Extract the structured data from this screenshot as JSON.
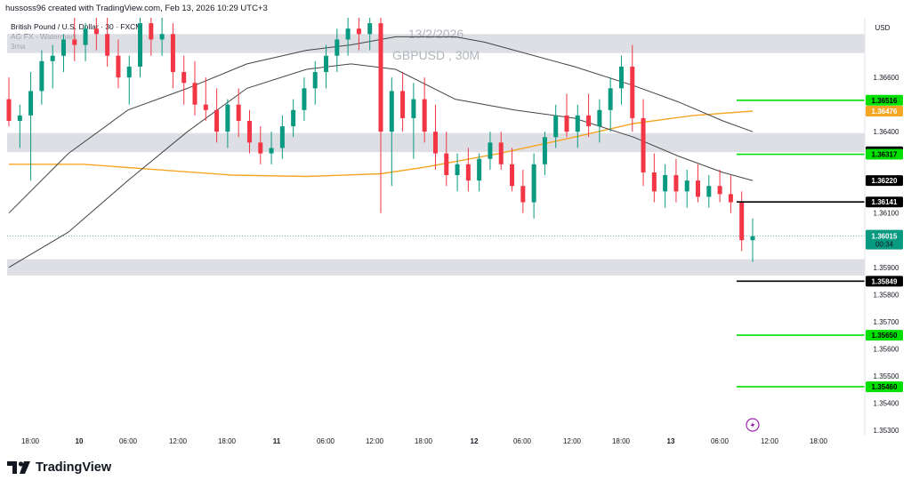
{
  "header": {
    "created_by": "hussoss96 created with TradingView.com, Feb 13, 2026 10:29 UTC+3"
  },
  "legend": {
    "symbol": "British Pound / U.S. Dollar · 30 · FXCM",
    "line2": "AG FX - Watermark",
    "line3": "3ma"
  },
  "watermark": {
    "date": "13/2/2026",
    "symbol": "GBPUSD , 30M"
  },
  "currency": "USD",
  "countdown": "00:34",
  "brand": {
    "name": "TradingView"
  },
  "colors": {
    "up": "#089981",
    "down": "#f23645",
    "ma_orange": "#f5a623",
    "ma_black": "#444444",
    "target_green": "#00e000",
    "level_black": "#000000",
    "zone_gray": "#d1d4dc"
  },
  "chart_data": {
    "type": "candlestick",
    "title": "",
    "y_ticks": [
      "1.36600",
      "1.36400",
      "1.36100",
      "1.35900",
      "1.35800",
      "1.35700",
      "1.35600",
      "1.35500",
      "1.35400",
      "1.35300"
    ],
    "x_ticks": [
      "18:00",
      "10",
      "06:00",
      "12:00",
      "18:00",
      "11",
      "06:00",
      "12:00",
      "18:00",
      "12",
      "06:00",
      "12:00",
      "18:00",
      "13",
      "06:00",
      "12:00",
      "18:00"
    ],
    "ylim": [
      1.3528,
      1.3682
    ],
    "last_price": 1.36015,
    "price_tags": [
      {
        "value": 1.36516,
        "label": "1.36516",
        "style": "green"
      },
      {
        "value": 1.36476,
        "label": "1.36476",
        "style": "orange"
      },
      {
        "value": 1.36326,
        "label": "1.36326",
        "style": "black"
      },
      {
        "value": 1.36317,
        "label": "1.36317",
        "style": "green"
      },
      {
        "value": 1.3622,
        "label": "1.36220",
        "style": "black"
      },
      {
        "value": 1.36141,
        "label": "1.36141",
        "style": "black"
      },
      {
        "value": 1.35849,
        "label": "1.35849",
        "style": "black"
      },
      {
        "value": 1.3565,
        "label": "1.35650",
        "style": "green"
      },
      {
        "value": 1.3546,
        "label": "1.35460",
        "style": "green"
      }
    ],
    "zones": [
      [
        1.3669,
        1.3676
      ],
      [
        1.36325,
        1.36395
      ],
      [
        1.3587,
        1.3593
      ]
    ],
    "moving_averages": [
      {
        "name": "orange",
        "points": [
          [
            0,
            1.3628
          ],
          [
            20,
            1.3628
          ],
          [
            50,
            1.3628
          ],
          [
            100,
            1.3626
          ],
          [
            150,
            1.3624
          ],
          [
            200,
            1.36235
          ],
          [
            250,
            1.36245
          ],
          [
            280,
            1.3627
          ],
          [
            330,
            1.3632
          ],
          [
            380,
            1.3638
          ],
          [
            420,
            1.3643
          ],
          [
            460,
            1.3646
          ],
          [
            500,
            1.36476
          ]
        ]
      },
      {
        "name": "upper",
        "points": [
          [
            0,
            1.361
          ],
          [
            40,
            1.3632
          ],
          [
            80,
            1.3648
          ],
          [
            120,
            1.3656
          ],
          [
            160,
            1.3665
          ],
          [
            200,
            1.367
          ],
          [
            230,
            1.3672
          ],
          [
            260,
            1.3675
          ],
          [
            300,
            1.3675
          ],
          [
            320,
            1.3673
          ],
          [
            380,
            1.3664
          ],
          [
            420,
            1.3657
          ],
          [
            450,
            1.3651
          ],
          [
            480,
            1.3644
          ],
          [
            500,
            1.364
          ]
        ]
      },
      {
        "name": "lower",
        "points": [
          [
            0,
            1.359
          ],
          [
            40,
            1.3603
          ],
          [
            80,
            1.3622
          ],
          [
            120,
            1.364
          ],
          [
            160,
            1.3656
          ],
          [
            200,
            1.3663
          ],
          [
            230,
            1.3665
          ],
          [
            260,
            1.3663
          ],
          [
            300,
            1.3652
          ],
          [
            340,
            1.3648
          ],
          [
            380,
            1.3645
          ],
          [
            420,
            1.3638
          ],
          [
            450,
            1.3631
          ],
          [
            480,
            1.3625
          ],
          [
            500,
            1.3622
          ]
        ]
      }
    ],
    "candles": [
      [
        1.3652,
        1.366,
        1.3642,
        1.3644
      ],
      [
        1.3644,
        1.365,
        1.3634,
        1.3646
      ],
      [
        1.3646,
        1.3662,
        1.3622,
        1.3655
      ],
      [
        1.3655,
        1.367,
        1.365,
        1.3666
      ],
      [
        1.3666,
        1.3672,
        1.3656,
        1.3668
      ],
      [
        1.3668,
        1.3676,
        1.3662,
        1.3674
      ],
      [
        1.3674,
        1.3682,
        1.3666,
        1.3672
      ],
      [
        1.3672,
        1.368,
        1.3666,
        1.3678
      ],
      [
        1.3678,
        1.3682,
        1.367,
        1.3676
      ],
      [
        1.3676,
        1.3682,
        1.3664,
        1.3668
      ],
      [
        1.3668,
        1.3674,
        1.3656,
        1.366
      ],
      [
        1.366,
        1.3668,
        1.365,
        1.3664
      ],
      [
        1.3664,
        1.3682,
        1.366,
        1.368
      ],
      [
        1.368,
        1.3682,
        1.3668,
        1.3674
      ],
      [
        1.3674,
        1.3682,
        1.3668,
        1.3676
      ],
      [
        1.3676,
        1.368,
        1.3656,
        1.3662
      ],
      [
        1.3662,
        1.3668,
        1.365,
        1.3658
      ],
      [
        1.3658,
        1.3666,
        1.3646,
        1.365
      ],
      [
        1.365,
        1.366,
        1.3644,
        1.3648
      ],
      [
        1.3648,
        1.3656,
        1.3636,
        1.364
      ],
      [
        1.364,
        1.3652,
        1.3634,
        1.365
      ],
      [
        1.365,
        1.3656,
        1.3638,
        1.3644
      ],
      [
        1.3644,
        1.3648,
        1.3632,
        1.3636
      ],
      [
        1.3636,
        1.3642,
        1.3628,
        1.3632
      ],
      [
        1.3632,
        1.364,
        1.3628,
        1.3634
      ],
      [
        1.3634,
        1.3646,
        1.363,
        1.3642
      ],
      [
        1.3642,
        1.3652,
        1.3638,
        1.3648
      ],
      [
        1.3648,
        1.366,
        1.3644,
        1.3656
      ],
      [
        1.3656,
        1.3666,
        1.365,
        1.3662
      ],
      [
        1.3662,
        1.3672,
        1.3656,
        1.3668
      ],
      [
        1.3668,
        1.3678,
        1.3662,
        1.3674
      ],
      [
        1.3674,
        1.3682,
        1.3668,
        1.3678
      ],
      [
        1.3678,
        1.3682,
        1.367,
        1.3676
      ],
      [
        1.3676,
        1.3682,
        1.367,
        1.368
      ],
      [
        1.368,
        1.3682,
        1.361,
        1.364
      ],
      [
        1.364,
        1.366,
        1.362,
        1.3655
      ],
      [
        1.3655,
        1.3662,
        1.364,
        1.3645
      ],
      [
        1.3645,
        1.3658,
        1.363,
        1.3652
      ],
      [
        1.3652,
        1.366,
        1.3636,
        1.364
      ],
      [
        1.364,
        1.365,
        1.3626,
        1.3632
      ],
      [
        1.3632,
        1.364,
        1.362,
        1.3624
      ],
      [
        1.3624,
        1.3632,
        1.3618,
        1.3628
      ],
      [
        1.3628,
        1.3634,
        1.3618,
        1.3622
      ],
      [
        1.3622,
        1.3632,
        1.3618,
        1.363
      ],
      [
        1.363,
        1.364,
        1.3626,
        1.3636
      ],
      [
        1.3636,
        1.364,
        1.3626,
        1.3628
      ],
      [
        1.3628,
        1.3634,
        1.3618,
        1.362
      ],
      [
        1.362,
        1.3626,
        1.361,
        1.3614
      ],
      [
        1.3614,
        1.3632,
        1.3608,
        1.3628
      ],
      [
        1.3628,
        1.364,
        1.3624,
        1.3638
      ],
      [
        1.3638,
        1.365,
        1.3634,
        1.3646
      ],
      [
        1.3646,
        1.3654,
        1.3638,
        1.364
      ],
      [
        1.364,
        1.365,
        1.3634,
        1.3646
      ],
      [
        1.3646,
        1.3654,
        1.3638,
        1.3642
      ],
      [
        1.3642,
        1.3652,
        1.3636,
        1.3648
      ],
      [
        1.3648,
        1.366,
        1.364,
        1.3656
      ],
      [
        1.3656,
        1.3668,
        1.365,
        1.3664
      ],
      [
        1.3664,
        1.3672,
        1.364,
        1.3645
      ],
      [
        1.3645,
        1.3652,
        1.362,
        1.3625
      ],
      [
        1.3625,
        1.3632,
        1.3614,
        1.3618
      ],
      [
        1.3618,
        1.3628,
        1.3612,
        1.3624
      ],
      [
        1.3624,
        1.363,
        1.3614,
        1.3618
      ],
      [
        1.3618,
        1.3626,
        1.3612,
        1.3622
      ],
      [
        1.3622,
        1.3628,
        1.3614,
        1.3616
      ],
      [
        1.3616,
        1.3624,
        1.3612,
        1.362
      ],
      [
        1.362,
        1.3626,
        1.3614,
        1.3617
      ],
      [
        1.3617,
        1.3624,
        1.361,
        1.3614
      ],
      [
        1.3614,
        1.3618,
        1.3596,
        1.36
      ],
      [
        1.36,
        1.3608,
        1.3592,
        1.36015
      ]
    ]
  }
}
